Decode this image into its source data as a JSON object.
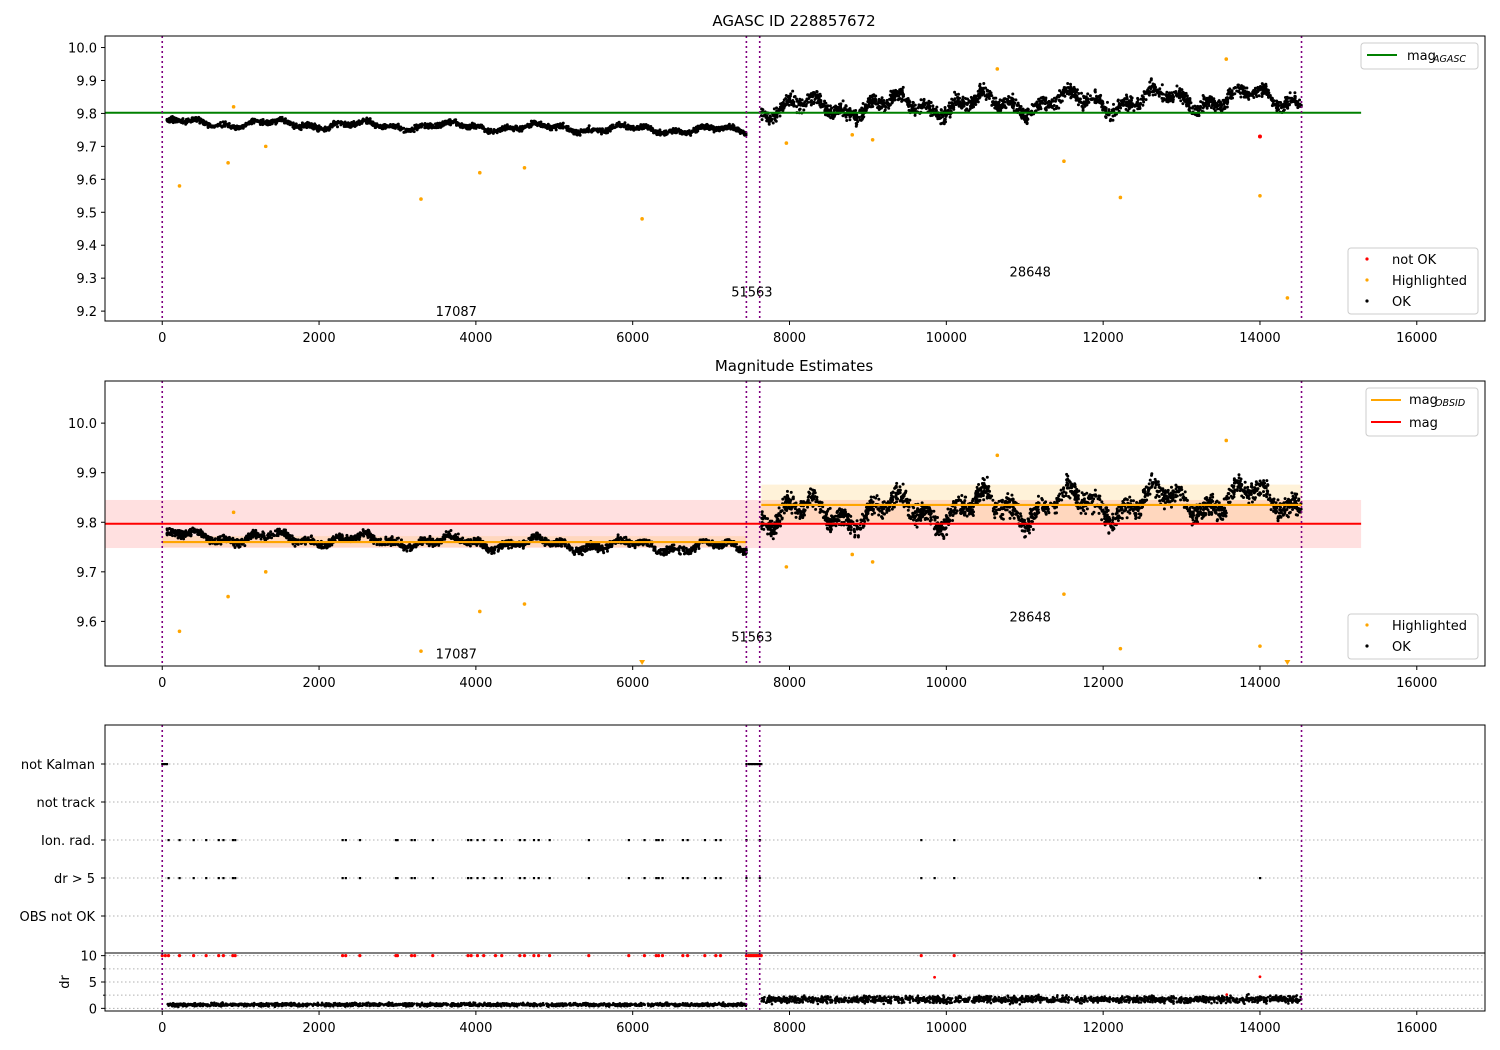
{
  "chart_data": [
    {
      "id": "p1",
      "type": "scatter",
      "title": "AGASC ID 228857672",
      "xlim": [
        -730,
        16870
      ],
      "ylim": [
        9.17,
        10.035
      ],
      "xticks": [
        0,
        2000,
        4000,
        6000,
        8000,
        10000,
        12000,
        14000,
        16000
      ],
      "xtick_labels": [
        "0",
        "2000",
        "4000",
        "6000",
        "8000",
        "10000",
        "12000",
        "14000",
        "16000"
      ],
      "yticks": [
        9.2,
        9.3,
        9.4,
        9.5,
        9.6,
        9.7,
        9.8,
        9.9,
        10.0
      ],
      "ytick_labels": [
        "9.2",
        "9.3",
        "9.4",
        "9.5",
        "9.6",
        "9.7",
        "9.8",
        "9.9",
        "10.0"
      ],
      "vlines": [
        0,
        7450,
        7620,
        14530
      ],
      "reference_lines": [
        {
          "name": "mag_AGASC",
          "y": 9.802,
          "x": [
            -730,
            15290
          ],
          "color": "#008000"
        }
      ],
      "obsid_labels": [
        {
          "text": "17087",
          "x": 3750,
          "y": 9.2
        },
        {
          "text": "51563",
          "x": 7520,
          "y": 9.26
        },
        {
          "text": "28648",
          "x": 11070,
          "y": 9.32
        }
      ],
      "segments": [
        {
          "x": [
            60,
            7450
          ],
          "y_start": 9.772,
          "y_end": 9.748,
          "noise": 0.011
        },
        {
          "x": [
            7640,
            14530
          ],
          "y_start": 9.815,
          "y_end": 9.85,
          "noise": 0.03
        }
      ],
      "outliers": {
        "x": [
          220,
          840,
          910,
          1320,
          3300,
          4050,
          4620,
          6120,
          10650,
          11500,
          12220,
          13570,
          14000,
          14350,
          7960,
          8800,
          9060
        ],
        "y": [
          9.58,
          9.65,
          9.82,
          9.7,
          9.54,
          9.62,
          9.635,
          9.48,
          9.935,
          9.655,
          9.545,
          9.965,
          9.55,
          9.24,
          9.71,
          9.735,
          9.72
        ]
      },
      "not_ok_points": {
        "x": [
          14000
        ],
        "y": [
          9.73
        ]
      },
      "legend": {
        "upper": {
          "position": "top-right",
          "entries": [
            {
              "label": "mag",
              "subscript": "AGASC",
              "color": "#008000",
              "marker": "line"
            }
          ]
        },
        "lower": {
          "position": "bottom-right",
          "entries": [
            {
              "label": "not OK",
              "color": "#ff0000",
              "marker": "dot"
            },
            {
              "label": "Highlighted",
              "color": "#ffa500",
              "marker": "dot"
            },
            {
              "label": "OK",
              "color": "#000000",
              "marker": "dot"
            }
          ]
        }
      }
    },
    {
      "id": "p2",
      "type": "scatter",
      "title": "Magnitude Estimates",
      "xlim": [
        -730,
        16870
      ],
      "ylim": [
        9.51,
        10.085
      ],
      "xticks": [
        0,
        2000,
        4000,
        6000,
        8000,
        10000,
        12000,
        14000,
        16000
      ],
      "xtick_labels": [
        "0",
        "2000",
        "4000",
        "6000",
        "8000",
        "10000",
        "12000",
        "14000",
        "16000"
      ],
      "yticks": [
        9.6,
        9.7,
        9.8,
        9.9,
        10.0
      ],
      "ytick_labels": [
        "9.6",
        "9.7",
        "9.8",
        "9.9",
        "10.0"
      ],
      "vlines": [
        0,
        7450,
        7620,
        14530
      ],
      "mag_band": {
        "x": [
          -730,
          15290
        ],
        "y": [
          9.748,
          9.845
        ],
        "line": 9.797,
        "color": "#ff0000"
      },
      "obsid_bands": [
        {
          "x": [
            0,
            7450
          ],
          "y": [
            9.75,
            9.772
          ],
          "line": 9.76
        },
        {
          "x": [
            7640,
            14530
          ],
          "y": [
            9.8,
            9.876
          ],
          "line": 9.835
        }
      ],
      "obsid_labels": [
        {
          "text": "17087",
          "x": 3750,
          "y": 9.535
        },
        {
          "text": "51563",
          "x": 7520,
          "y": 9.57
        },
        {
          "text": "28648",
          "x": 11070,
          "y": 9.61
        }
      ],
      "segments": [
        {
          "x": [
            60,
            7450
          ],
          "y_start": 9.772,
          "y_end": 9.748,
          "noise": 0.011
        },
        {
          "x": [
            7640,
            14530
          ],
          "y_start": 9.815,
          "y_end": 9.85,
          "noise": 0.03
        }
      ],
      "outliers": {
        "x": [
          220,
          840,
          910,
          1320,
          3300,
          4050,
          4620,
          10650,
          11500,
          12220,
          13570,
          14000,
          7960,
          8800,
          9060
        ],
        "y": [
          9.58,
          9.65,
          9.82,
          9.7,
          9.54,
          9.62,
          9.635,
          9.935,
          9.655,
          9.545,
          9.965,
          9.55,
          9.71,
          9.735,
          9.72
        ]
      },
      "off_scale_markers": {
        "x": [
          6120,
          14350
        ],
        "y": [
          9.514,
          9.514
        ]
      },
      "legend": {
        "upper": {
          "position": "top-right",
          "entries": [
            {
              "label": "mag",
              "subscript": "OBSID",
              "color": "#ffa500",
              "marker": "line"
            },
            {
              "label": "mag",
              "subscript": "",
              "color": "#ff0000",
              "marker": "line"
            }
          ]
        },
        "lower": {
          "position": "bottom-right",
          "entries": [
            {
              "label": "Highlighted",
              "color": "#ffa500",
              "marker": "dot"
            },
            {
              "label": "OK",
              "color": "#000000",
              "marker": "dot"
            }
          ]
        }
      }
    },
    {
      "id": "p3",
      "type": "scatter",
      "xlim": [
        -730,
        16870
      ],
      "categories": [
        "not Kalman",
        "not track",
        "Ion. rad.",
        "dr > 5",
        "OBS not OK"
      ],
      "flag_points": {
        "not Kalman": [
          0,
          20,
          40,
          60,
          7450,
          7480,
          7500,
          7520,
          7540,
          7560,
          7580,
          7600,
          7620,
          7640
        ],
        "not track": [],
        "Ion. rad.": [
          80,
          220,
          400,
          560,
          720,
          780,
          900,
          930,
          2300,
          2340,
          2520,
          2980,
          3000,
          3180,
          3220,
          3450,
          3900,
          3940,
          4020,
          4100,
          4250,
          4330,
          4560,
          4620,
          4740,
          4800,
          4940,
          5440,
          5950,
          6150,
          6300,
          6330,
          6380,
          6640,
          6700,
          6920,
          7060,
          7120,
          7450,
          7620,
          9680,
          10100
        ],
        "dr > 5": [
          80,
          220,
          400,
          560,
          720,
          780,
          900,
          930,
          2300,
          2340,
          2520,
          2980,
          3000,
          3180,
          3220,
          3450,
          3900,
          3940,
          4020,
          4100,
          4250,
          4330,
          4560,
          4620,
          4740,
          4800,
          4940,
          5440,
          5950,
          6150,
          6300,
          6330,
          6380,
          6640,
          6700,
          6920,
          7060,
          7120,
          7450,
          7620,
          9680,
          9850,
          10100,
          14000
        ],
        "OBS not OK": []
      }
    },
    {
      "id": "p4",
      "type": "scatter",
      "ylabel": "dr",
      "xlim": [
        -730,
        16870
      ],
      "ylim": [
        -0.5,
        10.5
      ],
      "xticks": [
        0,
        2000,
        4000,
        6000,
        8000,
        10000,
        12000,
        14000,
        16000
      ],
      "xtick_labels": [
        "0",
        "2000",
        "4000",
        "6000",
        "8000",
        "10000",
        "12000",
        "14000",
        "16000"
      ],
      "yticks": [
        0,
        5,
        10
      ],
      "ytick_labels": [
        "0",
        "5",
        "10"
      ],
      "minor_yticks": [
        2.5,
        7.5
      ],
      "segments": [
        {
          "x": [
            60,
            7450
          ],
          "mean": 0.7,
          "spread": 0.5
        },
        {
          "x": [
            7640,
            14530
          ],
          "mean": 1.7,
          "spread": 1.1
        }
      ],
      "clipped_points_x": [
        0,
        40,
        80,
        220,
        400,
        560,
        720,
        780,
        900,
        930,
        2300,
        2340,
        2520,
        2980,
        3000,
        3180,
        3220,
        3450,
        3900,
        3940,
        4020,
        4100,
        4250,
        4330,
        4560,
        4620,
        4740,
        4800,
        4940,
        5440,
        5950,
        6150,
        6300,
        6330,
        6380,
        6640,
        6700,
        6920,
        7060,
        7120,
        7450,
        7480,
        7500,
        7520,
        7540,
        7560,
        7580,
        7600,
        7620,
        7640,
        9680,
        10100
      ],
      "mid_points": {
        "x": [
          9850,
          14000
        ],
        "y": [
          5.9,
          6.0
        ]
      }
    }
  ]
}
